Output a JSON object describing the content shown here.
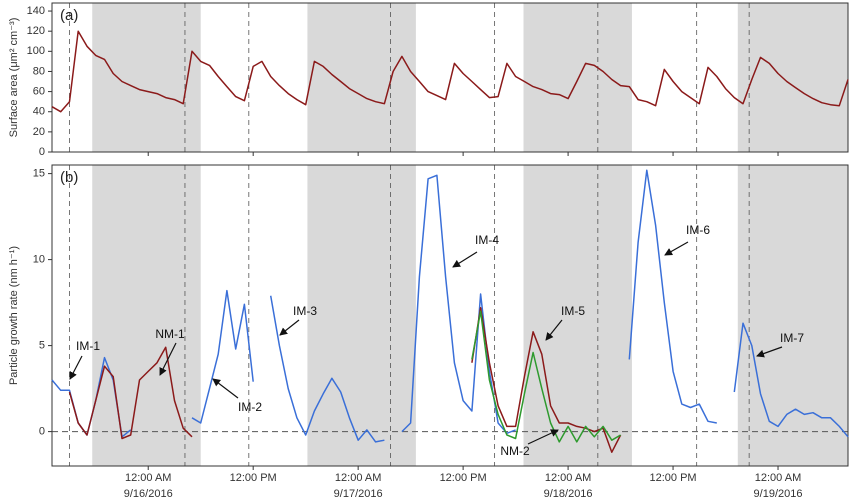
{
  "night_periods": [
    [
      17.6,
      30
    ],
    [
      42.2,
      54.6
    ],
    [
      66.9,
      79.3
    ],
    [
      91.4,
      104
    ]
  ],
  "event_lines": [
    15,
    28.2,
    35.5,
    51.7,
    63.6,
    75.4,
    86.7,
    92.7
  ],
  "chart_data": [
    {
      "type": "line",
      "panel_label": "(a)",
      "ylabel": "Surface area (μm² cm⁻³)",
      "xlim": [
        13,
        104
      ],
      "ylim": [
        0,
        148
      ],
      "yticks": [
        0,
        20,
        40,
        60,
        80,
        100,
        120,
        140
      ],
      "x": [
        13,
        14,
        15,
        16,
        17,
        18,
        19,
        20,
        21,
        22,
        23,
        24,
        25,
        26,
        27,
        28,
        29,
        30,
        31,
        32,
        33,
        34,
        35,
        36,
        37,
        38,
        39,
        40,
        41,
        42,
        43,
        44,
        45,
        46,
        47,
        48,
        49,
        50,
        51,
        52,
        53,
        54,
        55,
        56,
        57,
        58,
        59,
        60,
        61,
        62,
        63,
        64,
        65,
        66,
        67,
        68,
        69,
        70,
        71,
        72,
        73,
        74,
        75,
        76,
        77,
        78,
        79,
        80,
        81,
        82,
        83,
        84,
        85,
        86,
        87,
        88,
        89,
        90,
        91,
        92,
        93,
        94,
        95,
        96,
        97,
        98,
        99,
        100,
        101,
        102,
        103,
        104
      ],
      "series": [
        {
          "color": "#8b1a1a",
          "values": [
            45,
            40,
            50,
            120,
            105,
            96,
            92,
            78,
            70,
            66,
            62,
            60,
            58,
            54,
            52,
            48,
            100,
            90,
            86,
            75,
            65,
            55,
            51,
            85,
            90,
            75,
            66,
            58,
            52,
            47,
            90,
            85,
            77,
            70,
            63,
            58,
            53,
            50,
            48,
            80,
            95,
            80,
            70,
            60,
            56,
            52,
            88,
            78,
            70,
            62,
            54,
            55,
            88,
            75,
            70,
            65,
            62,
            58,
            57,
            53,
            70,
            88,
            86,
            80,
            72,
            66,
            65,
            52,
            50,
            46,
            82,
            70,
            60,
            54,
            48,
            84,
            75,
            63,
            54,
            48,
            72,
            94,
            88,
            78,
            70,
            64,
            58,
            53,
            49,
            47,
            46,
            72
          ]
        }
      ]
    },
    {
      "type": "line",
      "panel_label": "(b)",
      "ylabel": "Particle growth rate (nm h⁻¹)",
      "xlim": [
        13,
        104
      ],
      "ylim": [
        -2,
        15.5
      ],
      "yticks": [
        0,
        5,
        10,
        15
      ],
      "hline": 0,
      "xticks": [
        {
          "value": 24,
          "label": "12:00 AM"
        },
        {
          "value": 36,
          "label": "12:00 PM"
        },
        {
          "value": 48,
          "label": "12:00 AM"
        },
        {
          "value": 60,
          "label": "12:00 PM"
        },
        {
          "value": 72,
          "label": "12:00 AM"
        },
        {
          "value": 84,
          "label": "12:00 PM"
        },
        {
          "value": 96,
          "label": "12:00 AM"
        }
      ],
      "x_date_labels": [
        {
          "value": 24,
          "label": "9/16/2016"
        },
        {
          "value": 48,
          "label": "9/17/2016"
        },
        {
          "value": 72,
          "label": "9/18/2016"
        },
        {
          "value": 96,
          "label": "9/19/2016"
        }
      ],
      "x": [
        13,
        14,
        15,
        16,
        17,
        18,
        19,
        20,
        21,
        22,
        23,
        24,
        25,
        26,
        27,
        28,
        29,
        30,
        31,
        32,
        33,
        34,
        35,
        36,
        37,
        38,
        39,
        40,
        41,
        42,
        43,
        44,
        45,
        46,
        47,
        48,
        49,
        50,
        51,
        52,
        53,
        54,
        55,
        56,
        57,
        58,
        59,
        60,
        61,
        62,
        63,
        64,
        65,
        66,
        67,
        68,
        69,
        70,
        71,
        72,
        73,
        74,
        75,
        76,
        77,
        78,
        79,
        80,
        81,
        82,
        83,
        84,
        85,
        86,
        87,
        88,
        89,
        90,
        91,
        92,
        93,
        94,
        95,
        96,
        97,
        98,
        99,
        100,
        101,
        102,
        103,
        104
      ],
      "series": [
        {
          "color": "#3a6fd8",
          "values": [
            3.0,
            2.4,
            2.4,
            0.5,
            -0.2,
            1.8,
            4.3,
            3.0,
            -0.3,
            0.1,
            null,
            null,
            null,
            null,
            null,
            null,
            0.8,
            0.5,
            2.5,
            4.5,
            8.2,
            4.8,
            7.4,
            2.9,
            null,
            7.9,
            5.0,
            2.5,
            0.8,
            -0.2,
            1.2,
            2.2,
            3.1,
            2.3,
            0.8,
            -0.5,
            0.1,
            -0.6,
            -0.5,
            null,
            0.0,
            0.5,
            9.0,
            14.7,
            14.9,
            9.0,
            4.0,
            1.8,
            1.2,
            8.0,
            3.5,
            0.5,
            -0.1,
            0.1,
            null,
            null,
            null,
            null,
            null,
            null,
            null,
            null,
            null,
            null,
            null,
            null,
            4.2,
            11.0,
            15.2,
            12.0,
            7.5,
            3.5,
            1.6,
            1.4,
            1.6,
            0.6,
            0.5,
            null,
            2.3,
            6.3,
            5.0,
            2.2,
            0.6,
            0.3,
            1.0,
            1.3,
            1.0,
            1.1,
            0.8,
            0.8,
            0.3,
            -0.3
          ]
        },
        {
          "color": "#8b1a1a",
          "values": [
            null,
            null,
            2.3,
            0.5,
            -0.2,
            1.8,
            3.8,
            3.2,
            -0.4,
            -0.2,
            3.0,
            3.5,
            4.0,
            4.9,
            1.8,
            0.2,
            -0.3,
            null,
            null,
            null,
            null,
            null,
            null,
            null,
            null,
            null,
            null,
            null,
            null,
            null,
            null,
            null,
            null,
            null,
            null,
            null,
            null,
            null,
            null,
            null,
            null,
            null,
            null,
            null,
            null,
            null,
            null,
            null,
            4.0,
            7.2,
            4.0,
            1.5,
            0.3,
            0.3,
            3.2,
            5.8,
            4.5,
            1.5,
            0.5,
            0.5,
            0.3,
            0.2,
            0.0,
            0.2,
            -1.2,
            -0.2,
            null,
            null,
            null,
            null,
            null,
            null,
            null,
            null,
            null,
            null,
            null,
            null,
            null,
            null,
            null,
            null,
            null,
            null,
            null,
            null,
            null,
            null,
            null,
            null,
            null,
            null
          ]
        },
        {
          "color": "#2e9a2e",
          "values": [
            null,
            null,
            null,
            null,
            null,
            null,
            null,
            null,
            null,
            null,
            null,
            null,
            null,
            null,
            null,
            null,
            null,
            null,
            null,
            null,
            null,
            null,
            null,
            null,
            null,
            null,
            null,
            null,
            null,
            null,
            null,
            null,
            null,
            null,
            null,
            null,
            null,
            null,
            null,
            null,
            null,
            null,
            null,
            null,
            null,
            null,
            null,
            null,
            4.2,
            7.0,
            3.0,
            1.0,
            -0.2,
            -0.4,
            2.2,
            4.6,
            2.5,
            0.5,
            -0.6,
            0.3,
            -0.6,
            0.3,
            -0.3,
            0.3,
            -0.5,
            -0.2,
            null,
            null,
            null,
            null,
            null,
            null,
            null,
            null,
            null,
            null,
            null,
            null,
            null,
            null,
            null,
            null,
            null,
            null,
            null,
            null,
            null,
            null,
            null,
            null,
            null,
            null
          ]
        }
      ],
      "annotations": [
        "IM-1",
        "NM-1",
        "IM-2",
        "IM-3",
        "IM-4",
        "IM-5",
        "NM-2",
        "IM-6",
        "IM-7"
      ]
    }
  ]
}
